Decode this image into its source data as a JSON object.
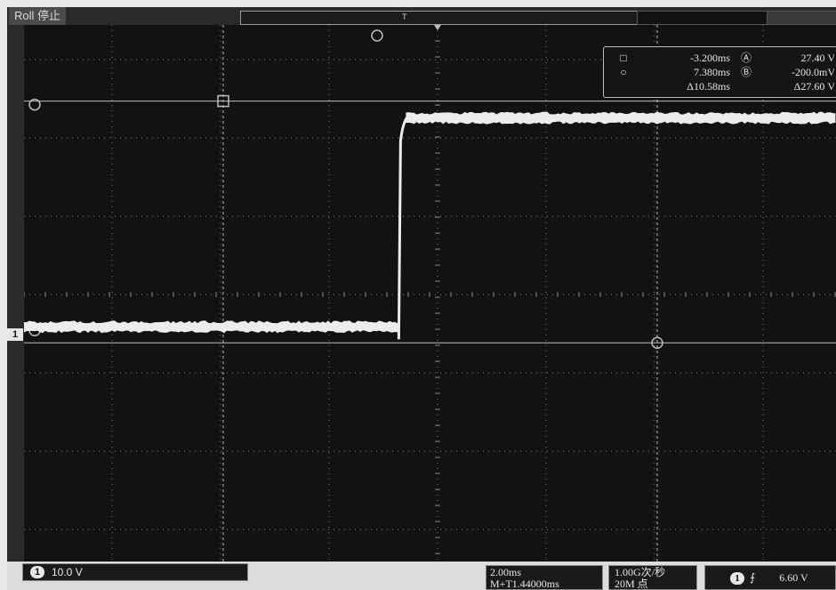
{
  "status": {
    "label": "Roll 停止"
  },
  "channel": {
    "number": "1",
    "scale": "10.0 V",
    "marker": "1"
  },
  "timebase": {
    "scale": "2.00ms",
    "delay": "M+T1.44000ms"
  },
  "acquisition": {
    "rate": "1.00G次/秒",
    "length": "20M 点"
  },
  "trigger": {
    "channel": "1",
    "slope_symbol": "⨍",
    "level": "6.60 V"
  },
  "cursors": {
    "time_a_symbol": "□",
    "time_a": "-3.200ms",
    "time_b_symbol": "○",
    "time_b": "7.380ms",
    "delta_time": "Δ10.58ms",
    "volt_a_symbol": "Ⓐ",
    "volt_a": "27.40 V",
    "volt_b_symbol": "Ⓑ",
    "volt_b": "-200.0mV",
    "delta_volt": "Δ27.60 V"
  },
  "markers": {
    "trigger_marker": "T",
    "cursor_a_label": "a",
    "cursor_b_label": "b"
  },
  "colors": {
    "screen": "#121212",
    "trace": "#ececec",
    "grid": "#7d7d7d",
    "cursor": "#bdbdbd"
  },
  "waveform": {
    "low_level_divisions": -0.48,
    "high_level_divisions": 2.3,
    "edge_time_divisions": -0.55,
    "rise_overshoot_divisions": 0.1
  }
}
